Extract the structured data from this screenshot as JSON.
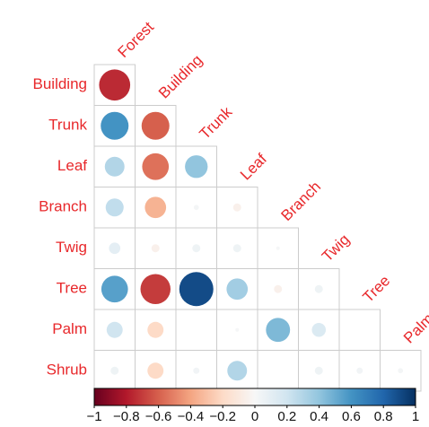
{
  "chart_data": {
    "type": "corrplot",
    "columns": [
      "Forest",
      "Building",
      "Trunk",
      "Leaf",
      "Branch",
      "Twig",
      "Tree",
      "Palm"
    ],
    "rows": [
      "Building",
      "Trunk",
      "Leaf",
      "Branch",
      "Twig",
      "Tree",
      "Palm",
      "Shrub"
    ],
    "values": [
      [
        -0.75
      ],
      [
        0.6,
        -0.6
      ],
      [
        0.3,
        -0.55,
        0.4
      ],
      [
        0.25,
        -0.35,
        0.02,
        -0.05
      ],
      [
        0.1,
        -0.05,
        0.05,
        0.05,
        0.01
      ],
      [
        0.55,
        -0.7,
        0.9,
        0.35,
        -0.05,
        0.05
      ],
      [
        0.2,
        -0.2,
        0,
        0.01,
        0.45,
        0.15,
        0
      ],
      [
        0.05,
        -0.2,
        0.03,
        0.3,
        0,
        0.05,
        0.03,
        0.02
      ]
    ],
    "colorscale": [
      "#67001f",
      "#b2182b",
      "#d6604d",
      "#f4a582",
      "#fddbc7",
      "#f7f7f7",
      "#d1e5f0",
      "#92c5de",
      "#4393c3",
      "#2166ac",
      "#053061"
    ],
    "clim": [
      -1,
      1
    ],
    "cticks": [
      {
        "value": -1,
        "label": "−1"
      },
      {
        "value": -0.8,
        "label": "−0.8"
      },
      {
        "value": -0.6,
        "label": "−0.6"
      },
      {
        "value": -0.4,
        "label": "−0.4"
      },
      {
        "value": -0.2,
        "label": "−0.2"
      },
      0,
      0.2,
      0.4,
      0.6,
      0.8,
      1
    ]
  }
}
